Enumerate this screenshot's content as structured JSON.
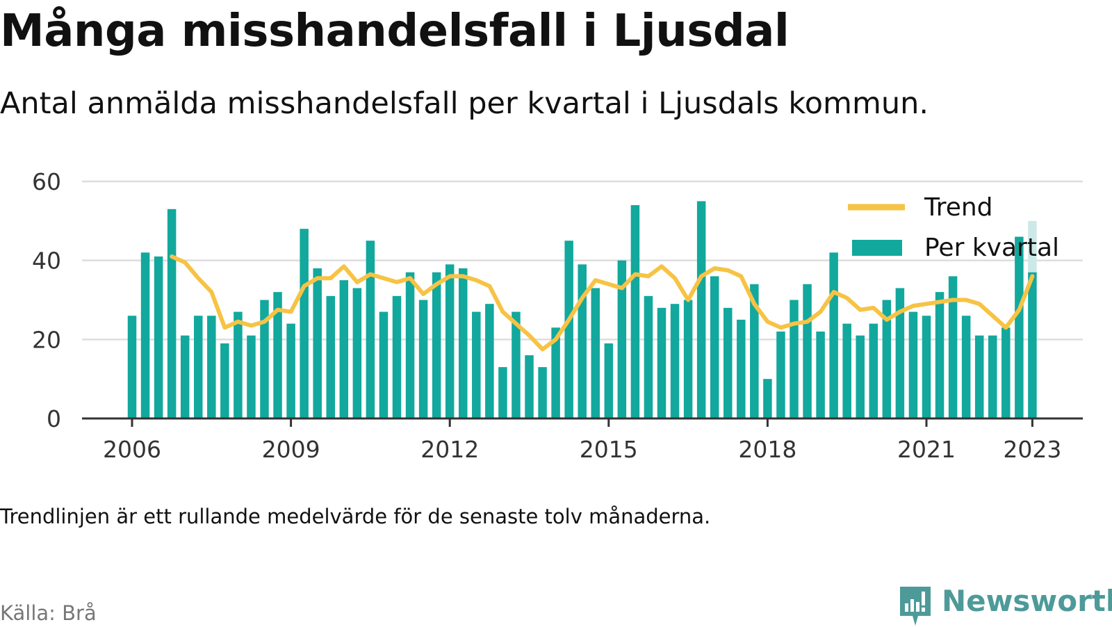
{
  "header": {
    "title": "Många misshandelsfall i Ljusdal",
    "subtitle": "Antal anmälda misshandelsfall per kvartal i Ljusdals kommun."
  },
  "footer": {
    "note": "Trendlinjen är ett rullande medelvärde för de senaste tolv månaderna.",
    "source": "Källa: Brå",
    "brand": "Newsworthy"
  },
  "colors": {
    "bar": "#12a89d",
    "bar_preliminary": "#cde9e7",
    "trend": "#f7c345",
    "grid": "#dddddd",
    "axis": "#333333",
    "brand": "#4d9a99"
  },
  "icons": {
    "brand_logo": "newsworthy-logo-icon"
  },
  "chart_data": {
    "type": "bar",
    "title": "Många misshandelsfall i Ljusdal",
    "subtitle": "Antal anmälda misshandelsfall per kvartal i Ljusdals kommun.",
    "xlabel": "",
    "ylabel": "",
    "ylim": [
      0,
      60
    ],
    "yticks": [
      0,
      20,
      40,
      60
    ],
    "xticks": [
      "2006",
      "2009",
      "2012",
      "2015",
      "2018",
      "2021",
      "2023"
    ],
    "grid": true,
    "legend": {
      "position": "top-right",
      "entries": [
        "Trend",
        "Per kvartal"
      ]
    },
    "categories": [
      "2006 Q1",
      "2006 Q2",
      "2006 Q3",
      "2006 Q4",
      "2007 Q1",
      "2007 Q2",
      "2007 Q3",
      "2007 Q4",
      "2008 Q1",
      "2008 Q2",
      "2008 Q3",
      "2008 Q4",
      "2009 Q1",
      "2009 Q2",
      "2009 Q3",
      "2009 Q4",
      "2010 Q1",
      "2010 Q2",
      "2010 Q3",
      "2010 Q4",
      "2011 Q1",
      "2011 Q2",
      "2011 Q3",
      "2011 Q4",
      "2012 Q1",
      "2012 Q2",
      "2012 Q3",
      "2012 Q4",
      "2013 Q1",
      "2013 Q2",
      "2013 Q3",
      "2013 Q4",
      "2014 Q1",
      "2014 Q2",
      "2014 Q3",
      "2014 Q4",
      "2015 Q1",
      "2015 Q2",
      "2015 Q3",
      "2015 Q4",
      "2016 Q1",
      "2016 Q2",
      "2016 Q3",
      "2016 Q4",
      "2017 Q1",
      "2017 Q2",
      "2017 Q3",
      "2017 Q4",
      "2018 Q1",
      "2018 Q2",
      "2018 Q3",
      "2018 Q4",
      "2019 Q1",
      "2019 Q2",
      "2019 Q3",
      "2019 Q4",
      "2020 Q1",
      "2020 Q2",
      "2020 Q3",
      "2020 Q4",
      "2021 Q1",
      "2021 Q2",
      "2021 Q3",
      "2021 Q4",
      "2022 Q1",
      "2022 Q2",
      "2022 Q3",
      "2022 Q4",
      "2023 Q1"
    ],
    "series": [
      {
        "name": "Per kvartal",
        "type": "bar",
        "values": [
          26,
          42,
          41,
          53,
          21,
          26,
          26,
          19,
          27,
          21,
          30,
          32,
          24,
          48,
          38,
          31,
          35,
          33,
          45,
          27,
          31,
          37,
          30,
          37,
          39,
          38,
          27,
          29,
          13,
          27,
          16,
          13,
          23,
          45,
          39,
          33,
          19,
          40,
          54,
          31,
          28,
          29,
          30,
          55,
          36,
          28,
          25,
          34,
          10,
          22,
          30,
          34,
          22,
          42,
          24,
          21,
          24,
          30,
          33,
          27,
          26,
          32,
          36,
          26,
          21,
          21,
          23,
          46,
          50
        ],
        "preliminary_last": true
      },
      {
        "name": "Trend",
        "type": "line",
        "values": [
          null,
          null,
          null,
          41,
          39.5,
          35.5,
          32,
          23,
          24.5,
          23.5,
          24.5,
          27.5,
          27,
          33.5,
          35.5,
          35.5,
          38.5,
          34.5,
          36.5,
          35.5,
          34.5,
          35.5,
          31.5,
          34,
          36,
          36,
          35,
          33.5,
          27,
          24,
          21,
          17.5,
          20,
          25,
          30.5,
          35,
          34,
          33,
          36.5,
          36,
          38.5,
          35.5,
          30,
          36,
          38,
          37.5,
          36,
          29,
          24.5,
          23,
          24,
          24.5,
          27,
          32,
          30.5,
          27.5,
          28,
          25,
          27,
          28.5,
          29,
          29.5,
          30,
          30,
          29,
          26,
          23,
          27.5,
          36
        ]
      }
    ]
  }
}
